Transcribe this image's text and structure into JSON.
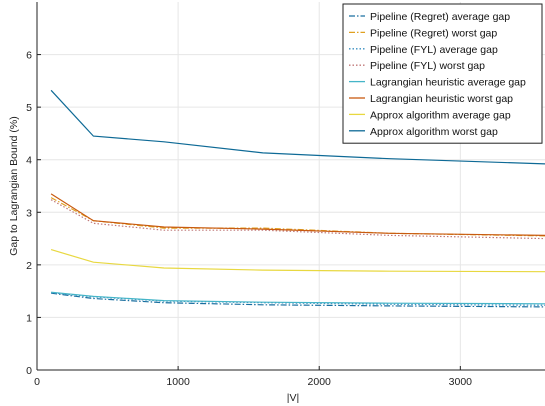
{
  "chart_data": {
    "type": "line",
    "title": "",
    "xlabel": "|V|",
    "ylabel": "Gap to Lagrangian Bound (%)",
    "xlim": [
      0,
      3600
    ],
    "ylim": [
      0,
      7
    ],
    "xticks": [
      0,
      1000,
      2000,
      3000
    ],
    "yticks": [
      0,
      1,
      2,
      3,
      4,
      5,
      6
    ],
    "grid": true,
    "legend_position": "top-right",
    "series": [
      {
        "name": "Pipeline (Regret) average gap",
        "color": "#1a6fa0",
        "dash": "dashdot",
        "x": [
          100,
          400,
          900,
          1600,
          2500,
          3600
        ],
        "y": [
          1.46,
          1.36,
          1.28,
          1.24,
          1.22,
          1.2
        ]
      },
      {
        "name": "Pipeline (Regret) worst gap",
        "color": "#e0a020",
        "dash": "dashdot",
        "x": [
          100,
          400,
          900,
          1600,
          2500,
          3600
        ],
        "y": [
          3.28,
          2.84,
          2.7,
          2.7,
          2.6,
          2.55
        ]
      },
      {
        "name": "Pipeline (FYL) average gap",
        "color": "#3a8fc0",
        "dash": "dotted",
        "x": [
          100,
          400,
          900,
          1600,
          2500,
          3600
        ],
        "y": [
          1.47,
          1.39,
          1.31,
          1.28,
          1.25,
          1.23
        ]
      },
      {
        "name": "Pipeline (FYL) worst gap",
        "color": "#c07878",
        "dash": "dotted",
        "x": [
          100,
          400,
          900,
          1600,
          2500,
          3600
        ],
        "y": [
          3.24,
          2.79,
          2.66,
          2.66,
          2.56,
          2.5
        ]
      },
      {
        "name": "Lagrangian heuristic average gap",
        "color": "#45b5c8",
        "dash": "solid",
        "x": [
          100,
          400,
          900,
          1600,
          2500,
          3600
        ],
        "y": [
          1.48,
          1.4,
          1.32,
          1.29,
          1.27,
          1.26
        ]
      },
      {
        "name": "Lagrangian heuristic worst gap",
        "color": "#c85a10",
        "dash": "solid",
        "x": [
          100,
          400,
          900,
          1600,
          2500,
          3600
        ],
        "y": [
          3.35,
          2.84,
          2.72,
          2.68,
          2.6,
          2.56
        ]
      },
      {
        "name": "Approx algorithm average gap",
        "color": "#e8d840",
        "dash": "solid",
        "x": [
          100,
          400,
          900,
          1600,
          2500,
          3600
        ],
        "y": [
          2.29,
          2.05,
          1.94,
          1.9,
          1.88,
          1.87
        ]
      },
      {
        "name": "Approx algorithm worst gap",
        "color": "#0e6a96",
        "dash": "solid",
        "x": [
          100,
          400,
          900,
          1600,
          2500,
          3600
        ],
        "y": [
          5.32,
          4.45,
          4.34,
          4.13,
          4.02,
          3.92
        ]
      }
    ]
  }
}
